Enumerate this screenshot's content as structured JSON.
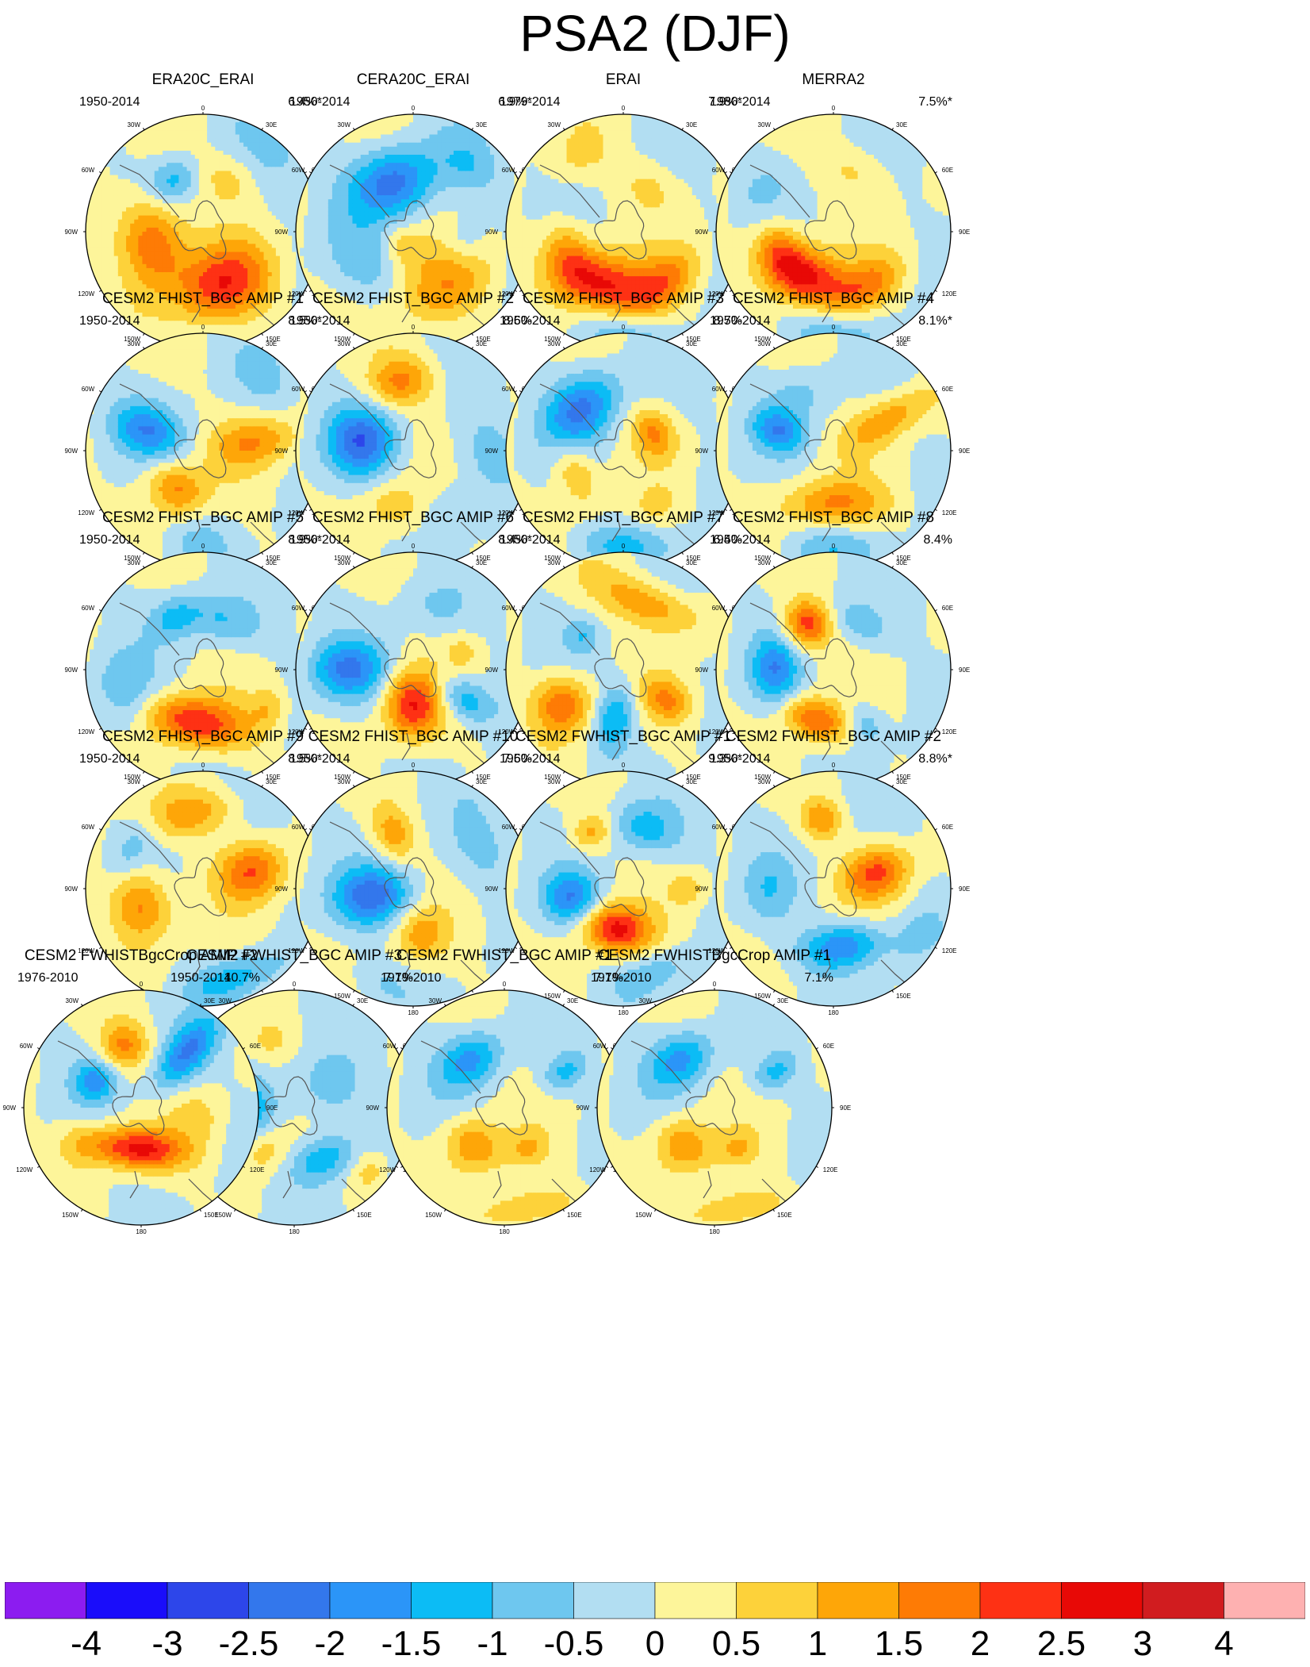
{
  "title": "PSA2 (DJF)",
  "chart_data": {
    "type": "heatmap",
    "projection": "south-polar-stereographic",
    "season": "DJF",
    "mode": "PSA2",
    "longitude_labels": [
      "0",
      "30E",
      "60E",
      "90E",
      "120E",
      "150E",
      "180",
      "150W",
      "120W",
      "90W",
      "60W",
      "30W"
    ],
    "colorbar": {
      "tick_labels": [
        "-4",
        "-3",
        "-2.5",
        "-2",
        "-1.5",
        "-1",
        "-0.5",
        "0",
        "0.5",
        "1",
        "1.5",
        "2",
        "2.5",
        "3",
        "4"
      ],
      "colors": [
        "#8c1cf0",
        "#1a0dfa",
        "#2d46ea",
        "#3377ec",
        "#2b95f8",
        "#0cbcf5",
        "#6ec7ef",
        "#b2def2",
        "#fdf59a",
        "#fdd23a",
        "#fea608",
        "#fe7b05",
        "#fe3114",
        "#e80906",
        "#d11c1f",
        "#feb1b1"
      ]
    },
    "panels": [
      {
        "title": "ERA20C_ERAI",
        "years": "1950-2014",
        "pct": "6.4%*",
        "features": [
          {
            "lon": 258,
            "r": 0.45,
            "v": 2.1,
            "a": 0.28,
            "b": 0.2
          },
          {
            "lon": 158,
            "r": 0.48,
            "v": 2.3,
            "a": 0.3,
            "b": 0.22
          },
          {
            "lon": 330,
            "r": 0.5,
            "v": -1.2,
            "a": 0.16,
            "b": 0.13
          },
          {
            "lon": 25,
            "r": 0.5,
            "v": 0.8,
            "a": 0.2,
            "b": 0.15
          },
          {
            "lon": 45,
            "r": 0.95,
            "v": -0.4,
            "a": 0.35,
            "b": 0.3
          }
        ]
      },
      {
        "title": "CERA20C_ERAI",
        "years": "1950-2014",
        "pct": "6.9%*",
        "features": [
          {
            "lon": 338,
            "r": 0.45,
            "v": -2.2,
            "a": 0.26,
            "b": 0.2
          },
          {
            "lon": 150,
            "r": 0.55,
            "v": 1.3,
            "a": 0.32,
            "b": 0.2
          },
          {
            "lon": 210,
            "r": 0.15,
            "v": 0.8,
            "a": 0.14,
            "b": 0.12
          },
          {
            "lon": 240,
            "r": 0.5,
            "v": -0.7,
            "a": 0.25,
            "b": 0.2
          },
          {
            "lon": 40,
            "r": 0.75,
            "v": -0.7,
            "a": 0.2,
            "b": 0.15
          },
          {
            "lon": 100,
            "r": 0.45,
            "v": -0.6,
            "a": 0.15,
            "b": 0.12
          }
        ]
      },
      {
        "title": "ERAI",
        "years": "1979-2014",
        "pct": "7.9%*",
        "features": [
          {
            "lon": 200,
            "r": 0.48,
            "v": 2.5,
            "a": 0.33,
            "b": 0.18
          },
          {
            "lon": 140,
            "r": 0.55,
            "v": 1.4,
            "a": 0.25,
            "b": 0.14
          },
          {
            "lon": 250,
            "r": 0.5,
            "v": 1.2,
            "a": 0.22,
            "b": 0.14
          },
          {
            "lon": 180,
            "r": 0.85,
            "v": -0.8,
            "a": 0.35,
            "b": 0.18
          },
          {
            "lon": 30,
            "r": 0.45,
            "v": 0.6,
            "a": 0.2,
            "b": 0.15
          },
          {
            "lon": 330,
            "r": 0.75,
            "v": 0.6,
            "a": 0.2,
            "b": 0.15
          }
        ]
      },
      {
        "title": "MERRA2",
        "years": "1980-2014",
        "pct": "7.5%*",
        "features": [
          {
            "lon": 210,
            "r": 0.45,
            "v": 2.6,
            "a": 0.3,
            "b": 0.17
          },
          {
            "lon": 145,
            "r": 0.55,
            "v": 1.4,
            "a": 0.23,
            "b": 0.14
          },
          {
            "lon": 250,
            "r": 0.48,
            "v": 1.2,
            "a": 0.2,
            "b": 0.13
          },
          {
            "lon": 180,
            "r": 0.82,
            "v": -0.8,
            "a": 0.35,
            "b": 0.18
          },
          {
            "lon": 20,
            "r": 0.55,
            "v": 0.6,
            "a": 0.22,
            "b": 0.15
          },
          {
            "lon": 300,
            "r": 0.7,
            "v": -0.4,
            "a": 0.2,
            "b": 0.15
          }
        ]
      },
      {
        "title": "CESM2 FHIST_BGC AMIP #1",
        "years": "1950-2014",
        "pct": "8.5%*",
        "features": [
          {
            "lon": 290,
            "r": 0.5,
            "v": -1.7,
            "a": 0.15,
            "b": 0.22
          },
          {
            "lon": 215,
            "r": 0.4,
            "v": 1.6,
            "a": 0.18,
            "b": 0.15
          },
          {
            "lon": 80,
            "r": 0.45,
            "v": 1.4,
            "a": 0.15,
            "b": 0.25
          },
          {
            "lon": 180,
            "r": 0.75,
            "v": -0.6,
            "a": 0.2,
            "b": 0.15
          },
          {
            "lon": 40,
            "r": 0.8,
            "v": -0.5,
            "a": 0.2,
            "b": 0.15
          }
        ]
      },
      {
        "title": "CESM2 FHIST_BGC AMIP #2",
        "years": "1950-2014",
        "pct": "8.6%",
        "features": [
          {
            "lon": 280,
            "r": 0.45,
            "v": -2.2,
            "a": 0.2,
            "b": 0.2
          },
          {
            "lon": 350,
            "r": 0.6,
            "v": 1.6,
            "a": 0.2,
            "b": 0.15
          },
          {
            "lon": 200,
            "r": 0.5,
            "v": 0.8,
            "a": 0.2,
            "b": 0.15
          },
          {
            "lon": 90,
            "r": 0.6,
            "v": -0.7,
            "a": 0.25,
            "b": 0.2
          },
          {
            "lon": 150,
            "r": 0.6,
            "v": -0.6,
            "a": 0.2,
            "b": 0.15
          }
        ]
      },
      {
        "title": "CESM2 FHIST_BGC AMIP #3",
        "years": "1950-2014",
        "pct": "8.7%",
        "features": [
          {
            "lon": 315,
            "r": 0.5,
            "v": -2.0,
            "a": 0.25,
            "b": 0.18
          },
          {
            "lon": 60,
            "r": 0.3,
            "v": 1.4,
            "a": 0.15,
            "b": 0.12
          },
          {
            "lon": 245,
            "r": 0.45,
            "v": 1.1,
            "a": 0.2,
            "b": 0.12
          },
          {
            "lon": 180,
            "r": 0.8,
            "v": -1.0,
            "a": 0.3,
            "b": 0.12
          },
          {
            "lon": 150,
            "r": 0.55,
            "v": 0.6,
            "a": 0.12,
            "b": 0.1
          }
        ]
      },
      {
        "title": "CESM2 FHIST_BGC AMIP #4",
        "years": "1950-2014",
        "pct": "8.1%*",
        "features": [
          {
            "lon": 290,
            "r": 0.5,
            "v": -1.6,
            "a": 0.12,
            "b": 0.16
          },
          {
            "lon": 180,
            "r": 0.45,
            "v": 1.5,
            "a": 0.3,
            "b": 0.14
          },
          {
            "lon": 60,
            "r": 0.55,
            "v": 1.3,
            "a": 0.12,
            "b": 0.3
          },
          {
            "lon": 180,
            "r": 0.82,
            "v": -0.8,
            "a": 0.3,
            "b": 0.12
          },
          {
            "lon": 330,
            "r": 0.55,
            "v": -0.6,
            "a": 0.2,
            "b": 0.15
          }
        ]
      },
      {
        "title": "CESM2 FHIST_BGC AMIP #5",
        "years": "1950-2014",
        "pct": "8.9%*",
        "features": [
          {
            "lon": 190,
            "r": 0.45,
            "v": 2.4,
            "a": 0.32,
            "b": 0.15
          },
          {
            "lon": 250,
            "r": 0.7,
            "v": -0.9,
            "a": 0.25,
            "b": 0.18
          },
          {
            "lon": 20,
            "r": 0.45,
            "v": -1.0,
            "a": 0.25,
            "b": 0.14
          },
          {
            "lon": 120,
            "r": 0.65,
            "v": 0.8,
            "a": 0.12,
            "b": 0.1
          },
          {
            "lon": 330,
            "r": 0.5,
            "v": -1.0,
            "a": 0.15,
            "b": 0.12
          }
        ]
      },
      {
        "title": "CESM2 FHIST_BGC AMIP #6",
        "years": "1950-2014",
        "pct": "8.4%*",
        "features": [
          {
            "lon": 180,
            "r": 0.3,
            "v": 2.4,
            "a": 0.17,
            "b": 0.2
          },
          {
            "lon": 270,
            "r": 0.55,
            "v": -1.9,
            "a": 0.17,
            "b": 0.22
          },
          {
            "lon": 120,
            "r": 0.5,
            "v": -1.5,
            "a": 0.12,
            "b": 0.18
          },
          {
            "lon": 70,
            "r": 0.45,
            "v": 0.6,
            "a": 0.12,
            "b": 0.1
          },
          {
            "lon": 20,
            "r": 0.55,
            "v": -0.5,
            "a": 0.2,
            "b": 0.15
          }
        ]
      },
      {
        "title": "CESM2 FHIST_BGC AMIP #7",
        "years": "1950-2014",
        "pct": "6.4%",
        "features": [
          {
            "lon": 20,
            "r": 0.6,
            "v": 1.4,
            "a": 0.35,
            "b": 0.14
          },
          {
            "lon": 240,
            "r": 0.6,
            "v": 2.0,
            "a": 0.18,
            "b": 0.18
          },
          {
            "lon": 190,
            "r": 0.42,
            "v": -1.6,
            "a": 0.12,
            "b": 0.2
          },
          {
            "lon": 125,
            "r": 0.45,
            "v": 1.4,
            "a": 0.12,
            "b": 0.15
          },
          {
            "lon": 310,
            "r": 0.45,
            "v": -0.8,
            "a": 0.1,
            "b": 0.1
          }
        ]
      },
      {
        "title": "CESM2 FHIST_BGC AMIP #8",
        "years": "1950-2014",
        "pct": "8.4%",
        "features": [
          {
            "lon": 330,
            "r": 0.45,
            "v": 2.3,
            "a": 0.14,
            "b": 0.14
          },
          {
            "lon": 270,
            "r": 0.5,
            "v": -1.7,
            "a": 0.2,
            "b": 0.14
          },
          {
            "lon": 200,
            "r": 0.45,
            "v": 2.0,
            "a": 0.2,
            "b": 0.12
          },
          {
            "lon": 150,
            "r": 0.55,
            "v": -1.0,
            "a": 0.12,
            "b": 0.15
          },
          {
            "lon": 30,
            "r": 0.45,
            "v": -0.8,
            "a": 0.2,
            "b": 0.12
          }
        ]
      },
      {
        "title": "CESM2 FHIST_BGC AMIP #9",
        "years": "1950-2014",
        "pct": "8.5%*",
        "features": [
          {
            "lon": 255,
            "r": 0.55,
            "v": 1.8,
            "a": 0.22,
            "b": 0.18
          },
          {
            "lon": 70,
            "r": 0.45,
            "v": 1.9,
            "a": 0.17,
            "b": 0.2
          },
          {
            "lon": 350,
            "r": 0.65,
            "v": 1.3,
            "a": 0.28,
            "b": 0.14
          },
          {
            "lon": 160,
            "r": 0.8,
            "v": -1.2,
            "a": 0.3,
            "b": 0.12
          },
          {
            "lon": 300,
            "r": 0.7,
            "v": -0.6,
            "a": 0.2,
            "b": 0.1
          }
        ]
      },
      {
        "title": "CESM2 FHIST_BGC AMIP #10",
        "years": "1950-2014",
        "pct": "7.6%",
        "features": [
          {
            "lon": 260,
            "r": 0.35,
            "v": -2.2,
            "a": 0.17,
            "b": 0.23
          },
          {
            "lon": 340,
            "r": 0.5,
            "v": 1.3,
            "a": 0.12,
            "b": 0.17
          },
          {
            "lon": 170,
            "r": 0.4,
            "v": 1.2,
            "a": 0.15,
            "b": 0.15
          },
          {
            "lon": 60,
            "r": 0.65,
            "v": -0.6,
            "a": 0.25,
            "b": 0.2
          },
          {
            "lon": 200,
            "r": 0.85,
            "v": -0.5,
            "a": 0.2,
            "b": 0.12
          }
        ]
      },
      {
        "title": "CESM2 FWHIST_BGC AMIP #1",
        "years": "1950-2014",
        "pct": "9.3%*",
        "features": [
          {
            "lon": 190,
            "r": 0.35,
            "v": 2.6,
            "a": 0.2,
            "b": 0.14
          },
          {
            "lon": 260,
            "r": 0.45,
            "v": -1.8,
            "a": 0.15,
            "b": 0.16
          },
          {
            "lon": 20,
            "r": 0.55,
            "v": -1.2,
            "a": 0.2,
            "b": 0.14
          },
          {
            "lon": 330,
            "r": 0.55,
            "v": 1.2,
            "a": 0.12,
            "b": 0.1
          },
          {
            "lon": 90,
            "r": 0.55,
            "v": 0.8,
            "a": 0.1,
            "b": 0.1
          },
          {
            "lon": 160,
            "r": 0.75,
            "v": -0.8,
            "a": 0.25,
            "b": 0.12
          }
        ]
      },
      {
        "title": "CESM2 FWHIST_BGC AMIP #2",
        "years": "1950-2014",
        "pct": "8.8%*",
        "features": [
          {
            "lon": 70,
            "r": 0.4,
            "v": 2.0,
            "a": 0.15,
            "b": 0.2
          },
          {
            "lon": 170,
            "r": 0.5,
            "v": -2.0,
            "a": 0.25,
            "b": 0.14
          },
          {
            "lon": 350,
            "r": 0.6,
            "v": 1.4,
            "a": 0.12,
            "b": 0.12
          },
          {
            "lon": 270,
            "r": 0.55,
            "v": -0.7,
            "a": 0.2,
            "b": 0.15
          },
          {
            "lon": 120,
            "r": 0.8,
            "v": -0.5,
            "a": 0.2,
            "b": 0.12
          }
        ]
      },
      {
        "title": "CESM2 FWHIST_BGC AMIP #3",
        "years": "1950-2014",
        "pct": "7.1%",
        "features": [
          {
            "lon": 270,
            "r": 0.55,
            "v": -2.1,
            "a": 0.17,
            "b": 0.22
          },
          {
            "lon": 150,
            "r": 0.5,
            "v": -1.6,
            "a": 0.2,
            "b": 0.14
          },
          {
            "lon": 215,
            "r": 0.45,
            "v": 0.8,
            "a": 0.12,
            "b": 0.15
          },
          {
            "lon": 60,
            "r": 0.35,
            "v": -1.0,
            "a": 0.2,
            "b": 0.2
          },
          {
            "lon": 130,
            "r": 0.85,
            "v": 0.8,
            "a": 0.12,
            "b": 0.1
          },
          {
            "lon": 340,
            "r": 0.6,
            "v": 0.6,
            "a": 0.15,
            "b": 0.12
          }
        ]
      },
      {
        "title": "CESM2 FWHIST_BGC AMIP #1",
        "years": "1979-2010",
        "pct": "7.1%",
        "features": [
          {
            "lon": 325,
            "r": 0.5,
            "v": -1.6,
            "a": 0.2,
            "b": 0.15
          },
          {
            "lon": 220,
            "r": 0.42,
            "v": 1.5,
            "a": 0.18,
            "b": 0.16
          },
          {
            "lon": 170,
            "r": 0.88,
            "v": 1.2,
            "a": 0.3,
            "b": 0.1
          },
          {
            "lon": 60,
            "r": 0.6,
            "v": -1.1,
            "a": 0.1,
            "b": 0.15
          },
          {
            "lon": 150,
            "r": 0.4,
            "v": 0.8,
            "a": 0.12,
            "b": 0.1
          }
        ]
      },
      {
        "title": "CESM2 FWHISTBgcCrop AMIP #1",
        "years": "1979-2010",
        "pct": "7.1%",
        "features": [
          {
            "lon": 325,
            "r": 0.5,
            "v": -1.6,
            "a": 0.2,
            "b": 0.15
          },
          {
            "lon": 220,
            "r": 0.42,
            "v": 1.5,
            "a": 0.18,
            "b": 0.16
          },
          {
            "lon": 170,
            "r": 0.88,
            "v": 1.2,
            "a": 0.3,
            "b": 0.1
          },
          {
            "lon": 60,
            "r": 0.6,
            "v": -1.1,
            "a": 0.1,
            "b": 0.15
          },
          {
            "lon": 150,
            "r": 0.4,
            "v": 0.8,
            "a": 0.12,
            "b": 0.1
          }
        ]
      },
      {
        "title": "CESM2 FWHISTBgcCrop AMIP #2",
        "years": "1976-2010",
        "pct": "10.7%",
        "features": [
          {
            "lon": 185,
            "r": 0.35,
            "v": 2.6,
            "a": 0.28,
            "b": 0.12
          },
          {
            "lon": 40,
            "r": 0.6,
            "v": -2.0,
            "a": 0.12,
            "b": 0.25
          },
          {
            "lon": 345,
            "r": 0.55,
            "v": 1.6,
            "a": 0.14,
            "b": 0.14
          },
          {
            "lon": 300,
            "r": 0.45,
            "v": -1.6,
            "a": 0.12,
            "b": 0.12
          },
          {
            "lon": 240,
            "r": 0.6,
            "v": 0.7,
            "a": 0.15,
            "b": 0.15
          },
          {
            "lon": 100,
            "r": 0.5,
            "v": 0.6,
            "a": 0.15,
            "b": 0.15
          }
        ]
      }
    ]
  }
}
